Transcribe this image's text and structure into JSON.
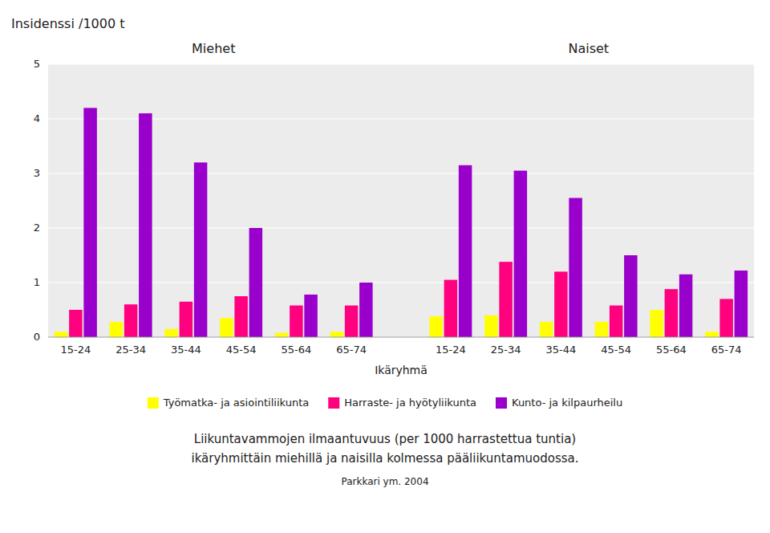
{
  "chart_data": {
    "type": "bar",
    "y_label": "Insidenssi /1000 t",
    "x_label": "Ikäryhmä",
    "sections": [
      "Miehet",
      "Naiset"
    ],
    "categories": [
      "15-24",
      "25-34",
      "35-44",
      "45-54",
      "55-64",
      "65-74",
      "15-24",
      "25-34",
      "35-44",
      "45-54",
      "55-64",
      "65-74"
    ],
    "series": [
      {
        "name": "Työmatka- ja asiointiliikunta",
        "color": "#FFFF00",
        "values": [
          0.1,
          0.28,
          0.15,
          0.35,
          0.08,
          0.1,
          0.38,
          0.4,
          0.28,
          0.28,
          0.5,
          0.1
        ]
      },
      {
        "name": "Harraste- ja hyötyliikunta",
        "color": "#FF007F",
        "values": [
          0.5,
          0.6,
          0.65,
          0.75,
          0.58,
          0.58,
          1.05,
          1.38,
          1.2,
          0.58,
          0.88,
          0.7
        ]
      },
      {
        "name": "Kunto- ja kilpaurheilu",
        "color": "#9900CC",
        "values": [
          4.2,
          4.1,
          3.2,
          2.0,
          0.78,
          1.0,
          3.15,
          3.05,
          2.55,
          1.5,
          1.15,
          1.22
        ]
      }
    ],
    "ylim": [
      0,
      5
    ],
    "yticks": [
      0,
      1,
      2,
      3,
      4,
      5
    ],
    "grid": true,
    "legend": "bottom",
    "caption": [
      "Liikuntavammojen ilmaantuvuus (per 1000 harrastettua tuntia)",
      "ikäryhmittäin miehillä ja naisilla kolmessa pääliikuntamuodossa.",
      "Parkkari ym. 2004"
    ]
  }
}
